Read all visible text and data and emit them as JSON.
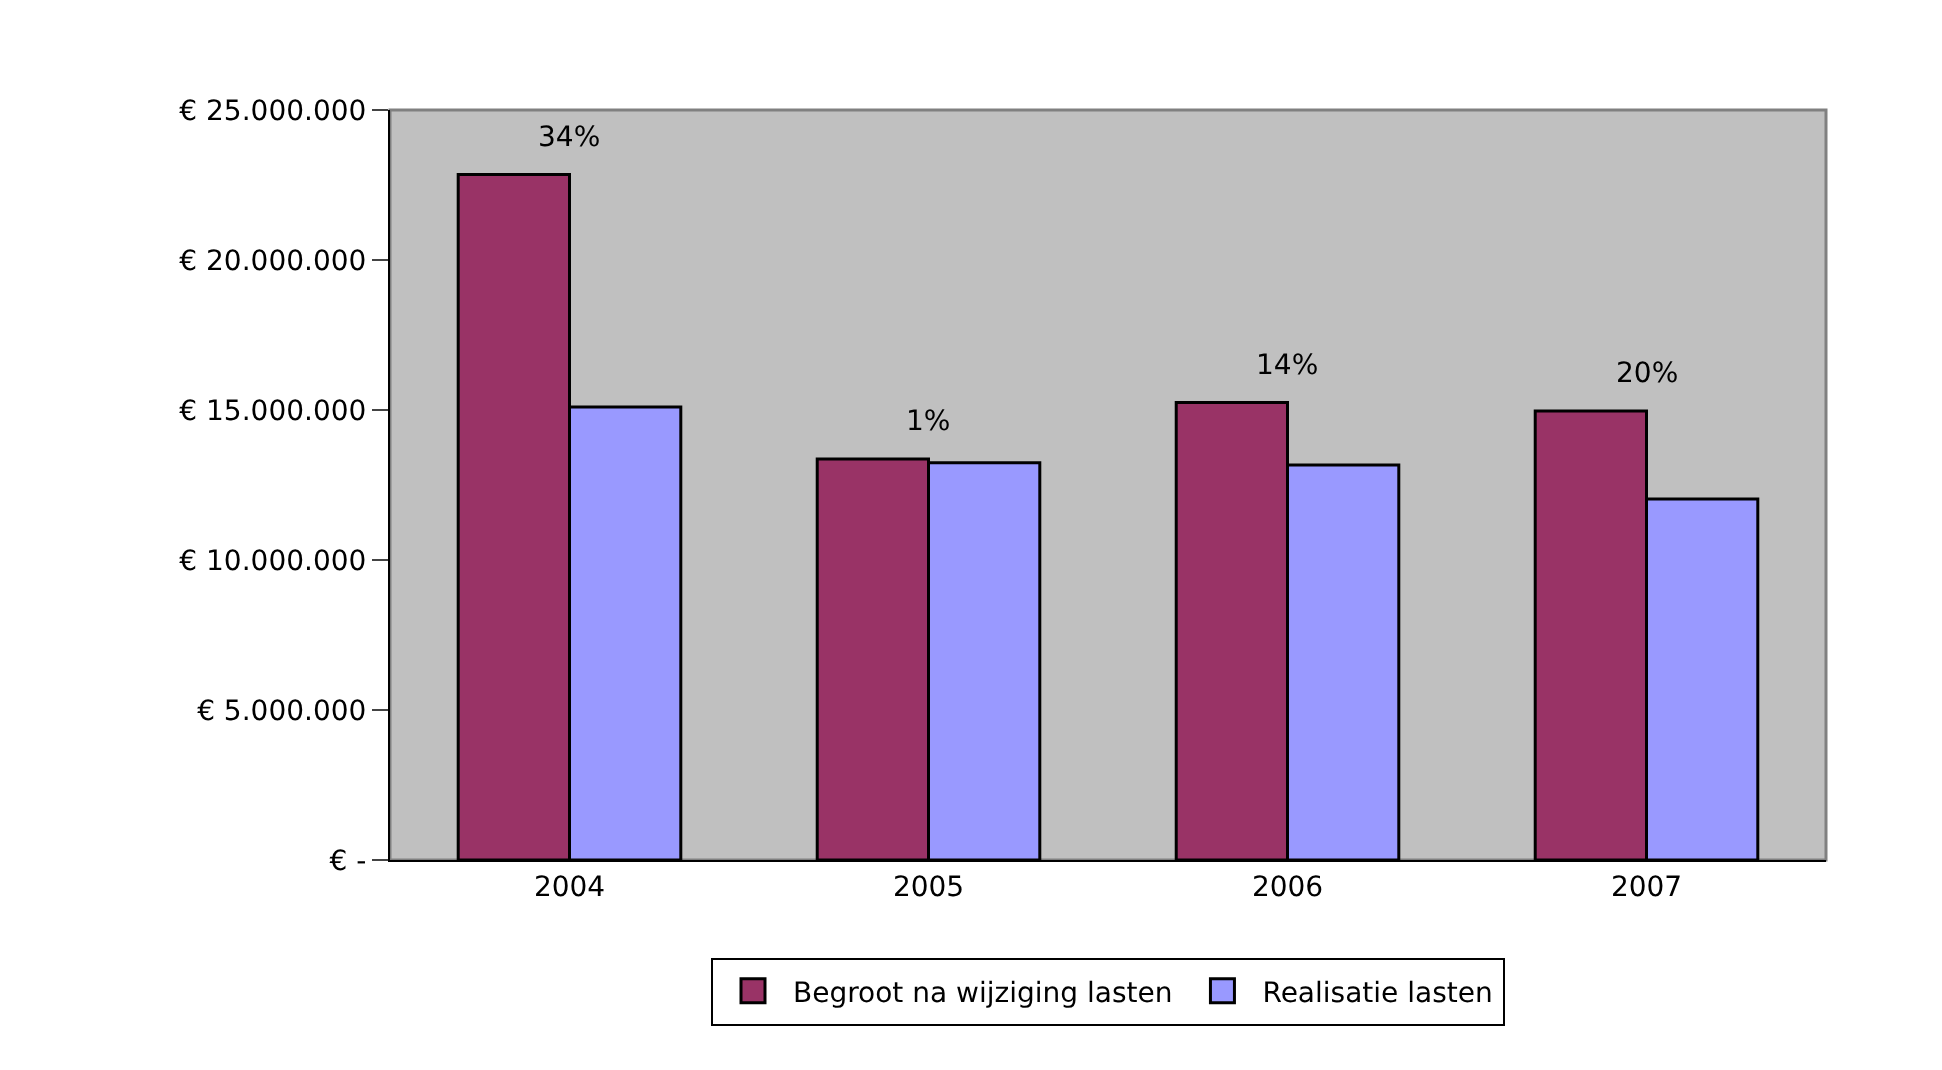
{
  "chart_data": {
    "type": "bar",
    "categories": [
      "2004",
      "2005",
      "2006",
      "2007"
    ],
    "series": [
      {
        "name": "Begroot na wijziging lasten",
        "color": "#993366",
        "values": [
          22850000,
          13370000,
          15250000,
          14970000
        ]
      },
      {
        "name": "Realisatie lasten",
        "color": "#9999ff",
        "values": [
          15100000,
          13240000,
          13170000,
          12030000
        ]
      }
    ],
    "ylim": [
      0,
      25000000
    ],
    "yticks": [
      {
        "value": 0,
        "label": "€ -"
      },
      {
        "value": 5000000,
        "label": "€ 5.000.000"
      },
      {
        "value": 10000000,
        "label": "€ 10.000.000"
      },
      {
        "value": 15000000,
        "label": "€ 15.000.000"
      },
      {
        "value": 20000000,
        "label": "€ 20.000.000"
      },
      {
        "value": 25000000,
        "label": "€ 25.000.000"
      }
    ],
    "annotations": [
      {
        "text": "34%",
        "x": "2004",
        "y": 22850000
      },
      {
        "text": "1%",
        "x": "2005",
        "y": 13370000
      },
      {
        "text": "14%",
        "x": "2006",
        "y": 15250000
      },
      {
        "text": "20%",
        "x": "2007",
        "y": 14970000
      }
    ],
    "grid": false,
    "legend": "bottom"
  }
}
